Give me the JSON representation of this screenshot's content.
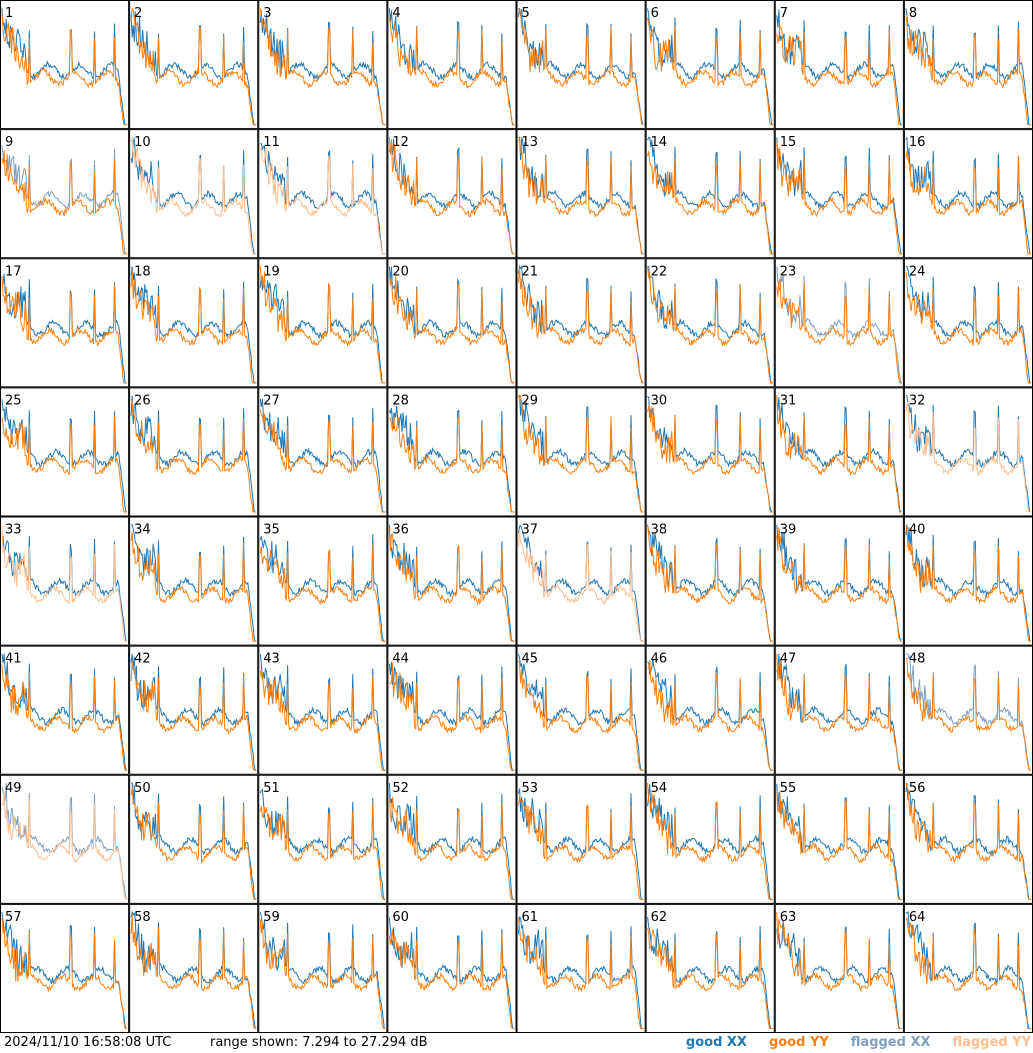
{
  "chart_data": {
    "type": "line",
    "layout": {
      "rows": 8,
      "cols": 8
    },
    "panels": [
      "1",
      "2",
      "3",
      "4",
      "5",
      "6",
      "7",
      "8",
      "9",
      "10",
      "11",
      "12",
      "13",
      "14",
      "15",
      "16",
      "17",
      "18",
      "19",
      "20",
      "21",
      "22",
      "23",
      "24",
      "25",
      "26",
      "27",
      "28",
      "29",
      "30",
      "31",
      "32",
      "33",
      "34",
      "35",
      "36",
      "37",
      "38",
      "39",
      "40",
      "41",
      "42",
      "43",
      "44",
      "45",
      "46",
      "47",
      "48",
      "49",
      "50",
      "51",
      "52",
      "53",
      "54",
      "55",
      "56",
      "57",
      "58",
      "59",
      "60",
      "61",
      "62",
      "63",
      "64"
    ],
    "ylim": [
      7.294,
      27.294
    ],
    "yunit": "dB",
    "series": [
      {
        "name": "good XX",
        "color": "#1f77b4"
      },
      {
        "name": "good YY",
        "color": "#ff7f0e"
      },
      {
        "name": "flagged XX",
        "color": "#7f9fbf"
      },
      {
        "name": "flagged YY",
        "color": "#ffbf8f"
      }
    ],
    "flagged": {
      "xx": [
        "9",
        "23",
        "48",
        "49"
      ],
      "yy": [
        "10",
        "11",
        "32",
        "33",
        "37",
        "49"
      ]
    },
    "grid": false
  },
  "footer": {
    "timestamp": "2024/11/10 16:58:08 UTC",
    "range_text": "range shown: 7.294 to 27.294 dB",
    "legend": [
      {
        "label": "good XX",
        "color": "#1f77b4"
      },
      {
        "label": "good YY",
        "color": "#ff7f0e"
      },
      {
        "label": "flagged XX",
        "color": "#7f9fbf"
      },
      {
        "label": "flagged YY",
        "color": "#ffbf8f"
      }
    ]
  }
}
